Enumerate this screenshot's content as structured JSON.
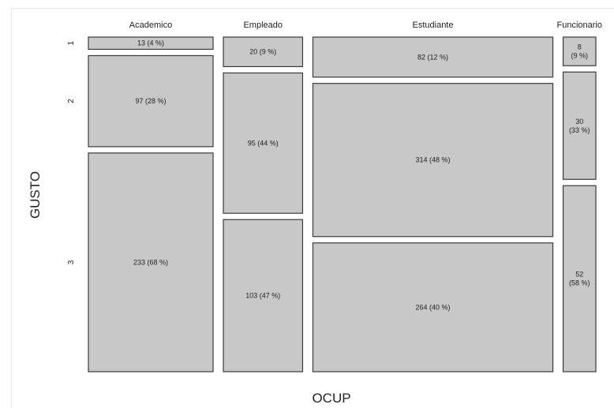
{
  "chart_data": {
    "type": "mosaic",
    "xlabel": "OCUP",
    "ylabel": "GUSTO",
    "categories": [
      "Academico",
      "Empleado",
      "Estudiante",
      "Funcionario"
    ],
    "rows": [
      "1",
      "2",
      "3"
    ],
    "counts": [
      [
        13,
        97,
        233
      ],
      [
        20,
        95,
        103
      ],
      [
        82,
        314,
        264
      ],
      [
        8,
        30,
        52
      ]
    ],
    "cell_labels": [
      [
        "13 (4 %)",
        "97 (28 %)",
        "233  (68 %)"
      ],
      [
        "20 (9 %)",
        "95 (44 %)",
        "103  (47 %)"
      ],
      [
        "82 (12 %)",
        "314 (48 %)",
        "264  (40 %)"
      ],
      [
        "8\n(9 %)",
        "30\n(33 %)",
        "52\n(58 %)"
      ]
    ],
    "colors": {
      "fill": "#c8c8c8",
      "stroke": "#3a3a3a"
    }
  }
}
